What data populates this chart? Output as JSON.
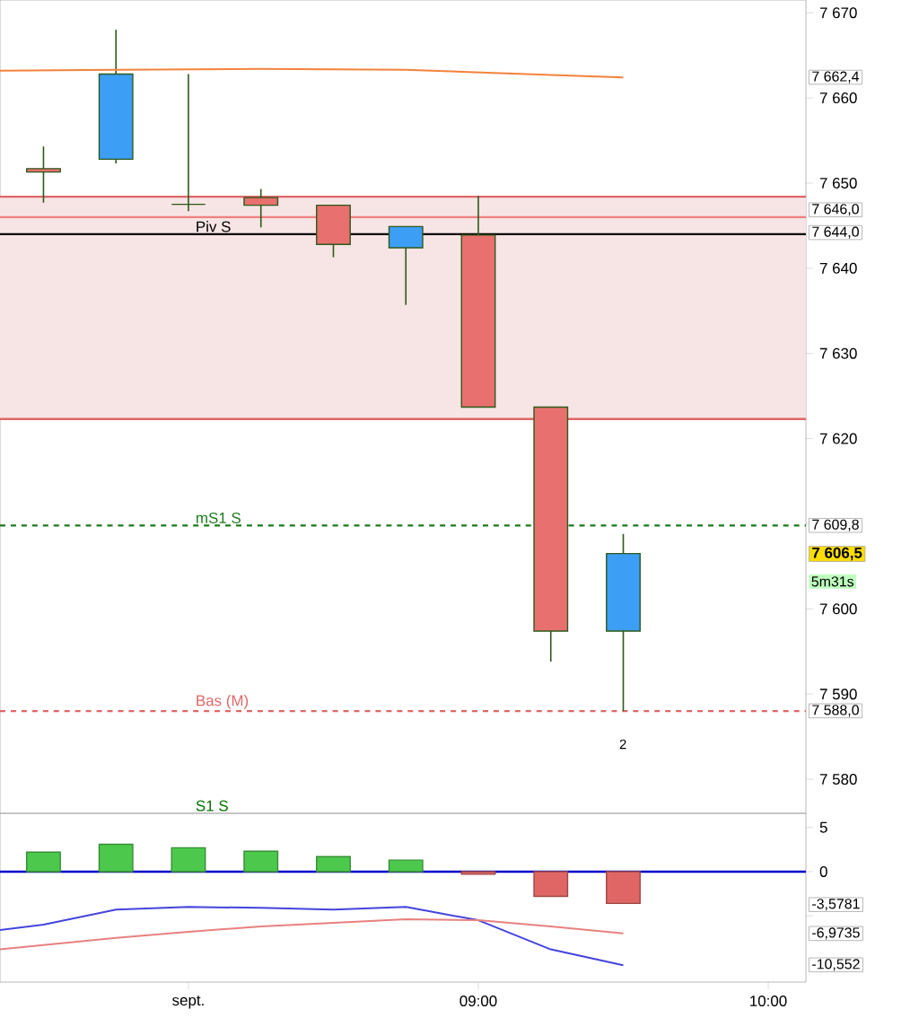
{
  "chart_data": [
    {
      "type": "candlestick",
      "x": [
        7.5,
        7.75,
        8.0,
        8.25,
        8.5,
        8.75,
        9.0,
        9.25,
        9.5
      ],
      "ohlc": [
        [
          7651.7,
          7654.3,
          7647.7,
          7651.3
        ],
        [
          7652.8,
          7668.0,
          7652.3,
          7662.8
        ],
        [
          7647.5,
          7662.8,
          7646.7,
          7647.5
        ],
        [
          7648.3,
          7649.3,
          7644.8,
          7647.4
        ],
        [
          7647.4,
          7647.4,
          7641.3,
          7642.8
        ],
        [
          7642.4,
          7644.9,
          7635.7,
          7644.9
        ],
        [
          7643.9,
          7648.5,
          7623.7,
          7623.7
        ],
        [
          7623.7,
          7623.7,
          7593.8,
          7597.4
        ],
        [
          7597.4,
          7608.8,
          7588.0,
          7606.5
        ]
      ],
      "colors": [
        "#e8706e",
        "#3d9ef5",
        "#2d5a1b",
        "#e8706e",
        "#e8706e",
        "#3d9ef5",
        "#e8706e",
        "#e8706e",
        "#3d9ef5"
      ],
      "series": [
        {
          "type": "line",
          "color": "#f4823c",
          "x": [
            7.35,
            7.75,
            8.25,
            8.75,
            9.0,
            9.25,
            9.5
          ],
          "values": [
            7663.2,
            7663.3,
            7663.4,
            7663.3,
            7663.0,
            7662.7,
            7662.4
          ]
        }
      ],
      "xlim": [
        7.35,
        10.13
      ],
      "ylim": [
        7576,
        7671.5
      ],
      "yticks": [
        {
          "value": 7580,
          "label": "7 580"
        },
        {
          "value": 7590,
          "label": "7 590"
        },
        {
          "value": 7600,
          "label": "7 600"
        },
        {
          "value": 7610,
          "label": null
        },
        {
          "value": 7620,
          "label": "7 620"
        },
        {
          "value": 7630,
          "label": "7 630"
        },
        {
          "value": 7640,
          "label": "7 640"
        },
        {
          "value": 7650,
          "label": "7 650"
        },
        {
          "value": 7660,
          "label": "7 660"
        },
        {
          "value": 7670,
          "label": "7 670"
        }
      ],
      "tick_labels": "y",
      "bands": [
        {
          "axis": "y",
          "from": 7622.3,
          "to": 7648.4,
          "color": "#f7e4e4"
        }
      ],
      "ref_lines": [
        {
          "axis": "y",
          "value": 7622.3,
          "color": "#e06666",
          "line_style": "solid"
        },
        {
          "axis": "y",
          "value": 7648.4,
          "color": "#e06666",
          "line_style": "solid"
        },
        {
          "axis": "y",
          "value": 7646.0,
          "color": "#f08080",
          "line_style": "solid"
        },
        {
          "axis": "y",
          "value": 7644.0,
          "label": "Piv S",
          "color": "#000000",
          "line_style": "solid"
        },
        {
          "axis": "y",
          "value": 7609.8,
          "label": "mS1 S",
          "color": "#1a7a1a",
          "line_style": "dashed"
        },
        {
          "axis": "y",
          "value": 7588.0,
          "label": "Bas (M)",
          "color": "#e06666",
          "line_style": "dashed"
        }
      ],
      "annotations": [
        "7 662,4",
        "7 646,0",
        "7 644,0",
        "7 609,8",
        "7 606,5",
        "5m31s",
        "7 588,0",
        "2",
        "S1 S"
      ]
    },
    {
      "type": "bar",
      "series": [
        {
          "type": "bar",
          "x": [
            7.5,
            7.75,
            8.0,
            8.25,
            8.5,
            8.75,
            9.0,
            9.25,
            9.5
          ],
          "values": [
            2.2,
            3.1,
            2.7,
            2.3,
            1.7,
            1.3,
            -0.3,
            -2.8,
            -3.6
          ],
          "colors": [
            "#4cc94c",
            "#4cc94c",
            "#4cc94c",
            "#4cc94c",
            "#4cc94c",
            "#4cc94c",
            "#e06666",
            "#e06666",
            "#e06666"
          ]
        },
        {
          "type": "line",
          "color": "#4444dd",
          "x": [
            7.35,
            7.5,
            7.75,
            8.0,
            8.25,
            8.5,
            8.75,
            9.0,
            9.25,
            9.5
          ],
          "values": [
            -6.6,
            -6.0,
            -4.3,
            -4.0,
            -4.1,
            -4.3,
            -4.0,
            -5.5,
            -8.8,
            -10.6
          ]
        },
        {
          "type": "line",
          "color": "#e88080",
          "x": [
            7.35,
            7.75,
            8.0,
            8.25,
            8.5,
            8.75,
            9.0,
            9.25,
            9.5
          ],
          "values": [
            -8.8,
            -7.5,
            -6.8,
            -6.2,
            -5.8,
            -5.4,
            -5.5,
            -6.2,
            -7.0
          ]
        }
      ],
      "xlim": [
        7.35,
        10.13
      ],
      "ylim": [
        -12.5,
        6.6
      ],
      "xticks": [
        {
          "value": 8,
          "label": "sept."
        },
        {
          "value": 9,
          "label": "09:00"
        },
        {
          "value": 10,
          "label": "10:00"
        }
      ],
      "yticks": [
        5,
        0,
        {
          "value": -5,
          "label": null
        }
      ],
      "ref_lines": [
        {
          "axis": "y",
          "value": 0,
          "color": "#0000cc",
          "line_style": "solid"
        }
      ],
      "annotations": [
        "-3,5781",
        "-6,9735",
        "-10,552"
      ]
    }
  ]
}
